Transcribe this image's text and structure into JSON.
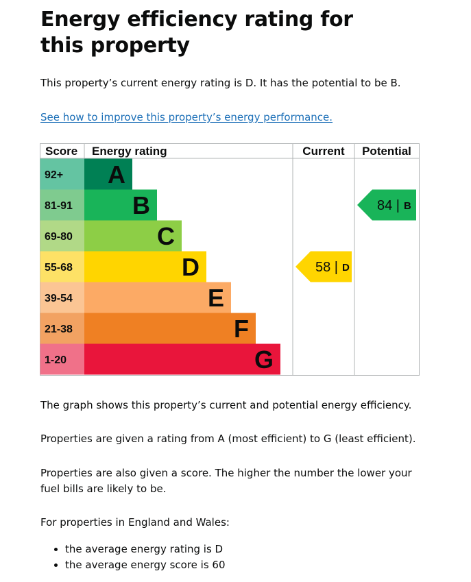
{
  "page": {
    "title": "Energy efficiency rating for this property",
    "summary": "This property’s current energy rating is D. It has the potential to be B.",
    "improve_link": "See how to improve this property’s energy performance.",
    "graph_text": "The graph shows this property’s current and potential energy efficiency.",
    "rating_text": "Properties are given a rating from A (most efficient) to G (least efficient).",
    "score_text": "Properties are also given a score. The higher the number the lower your fuel bills are likely to be.",
    "region_text": "For properties in England and Wales:",
    "averages": [
      "the average energy rating is D",
      "the average energy score is 60"
    ]
  },
  "chart_data": {
    "type": "bar",
    "columns": {
      "score": "Score",
      "rating": "Energy rating",
      "current": "Current",
      "potential": "Potential"
    },
    "bands": [
      {
        "band": "A",
        "range": "92+",
        "color": "#008054",
        "score_color": "#64c4a2"
      },
      {
        "band": "B",
        "range": "81-91",
        "color": "#19b459",
        "score_color": "#7fcb8f"
      },
      {
        "band": "C",
        "range": "69-80",
        "color": "#8dce46",
        "score_color": "#b1d987"
      },
      {
        "band": "D",
        "range": "55-68",
        "color": "#ffd500",
        "score_color": "#fde166"
      },
      {
        "band": "E",
        "range": "39-54",
        "color": "#fcaa65",
        "score_color": "#fbc594"
      },
      {
        "band": "F",
        "range": "21-38",
        "color": "#ef8023",
        "score_color": "#f2a262"
      },
      {
        "band": "G",
        "range": "1-20",
        "color": "#e9153b",
        "score_color": "#f07189"
      }
    ],
    "current": {
      "score": 58,
      "band": "D",
      "color": "#ffd500"
    },
    "potential": {
      "score": 84,
      "band": "B",
      "color": "#19b459"
    }
  }
}
